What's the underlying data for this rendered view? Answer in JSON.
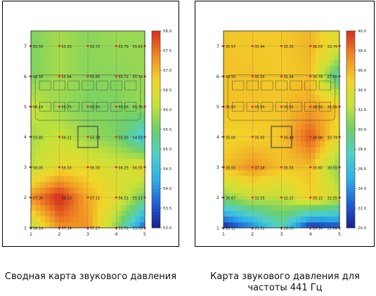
{
  "captions": {
    "left": "Сводная карта звукового давления",
    "right": "Карта звукового давления для частоты 441 Гц"
  },
  "chart_data": [
    {
      "type": "heatmap",
      "title": "Сводная карта звукового давления",
      "x_ticks": [
        "1",
        "2",
        "3",
        "4",
        "5"
      ],
      "y_ticks": [
        "1",
        "2",
        "3",
        "4",
        "5",
        "6",
        "7"
      ],
      "xlim": [
        1,
        5
      ],
      "ylim": [
        1,
        7.5
      ],
      "colorbar_ticks": [
        "53.0",
        "53.5",
        "54.0",
        "54.5",
        "55.0",
        "55.5",
        "56.0",
        "56.5",
        "57.0",
        "57.5",
        "58.0"
      ],
      "colorbar_range": [
        53.0,
        58.0
      ],
      "colors": [
        "#1b1e8c",
        "#1f5fd6",
        "#2fb0e8",
        "#4fd0c8",
        "#6ecf6a",
        "#c6e23a",
        "#f2d52a",
        "#f08a24",
        "#d8301e"
      ],
      "point_labels": [
        {
          "x": 1,
          "y": 7,
          "label": "55.55"
        },
        {
          "x": 2,
          "y": 7,
          "label": "55.93"
        },
        {
          "x": 3,
          "y": 7,
          "label": "55.72"
        },
        {
          "x": 4,
          "y": 7,
          "label": "55.79"
        },
        {
          "x": 5,
          "y": 7,
          "label": "55.81"
        },
        {
          "x": 1,
          "y": 6,
          "label": "55.55"
        },
        {
          "x": 2,
          "y": 6,
          "label": "55.94"
        },
        {
          "x": 3,
          "y": 6,
          "label": "55.65"
        },
        {
          "x": 4,
          "y": 6,
          "label": "55.71"
        },
        {
          "x": 5,
          "y": 6,
          "label": "55.75"
        },
        {
          "x": 1,
          "y": 5,
          "label": "56.15"
        },
        {
          "x": 2,
          "y": 5,
          "label": "55.75"
        },
        {
          "x": 3,
          "y": 5,
          "label": "55.55"
        },
        {
          "x": 4,
          "y": 5,
          "label": "55.55"
        },
        {
          "x": 5,
          "y": 5,
          "label": "55.75"
        },
        {
          "x": 1,
          "y": 4,
          "label": "55.85"
        },
        {
          "x": 2,
          "y": 4,
          "label": "56.21"
        },
        {
          "x": 3,
          "y": 4,
          "label": "55.78"
        },
        {
          "x": 4,
          "y": 4,
          "label": "55.55"
        },
        {
          "x": 5,
          "y": 4,
          "label": "54.55"
        },
        {
          "x": 1,
          "y": 3,
          "label": "56.05"
        },
        {
          "x": 2,
          "y": 3,
          "label": "56.55"
        },
        {
          "x": 3,
          "y": 3,
          "label": "56.55"
        },
        {
          "x": 4,
          "y": 3,
          "label": "56.25"
        },
        {
          "x": 5,
          "y": 3,
          "label": "56.55"
        },
        {
          "x": 1,
          "y": 2,
          "label": "57.30"
        },
        {
          "x": 2,
          "y": 2,
          "label": "58.13"
        },
        {
          "x": 3,
          "y": 2,
          "label": "57.11"
        },
        {
          "x": 4,
          "y": 2,
          "label": "56.51"
        },
        {
          "x": 5,
          "y": 2,
          "label": "55.51"
        },
        {
          "x": 1,
          "y": 1,
          "label": "56.14"
        },
        {
          "x": 2,
          "y": 1,
          "label": "57.34"
        },
        {
          "x": 3,
          "y": 1,
          "label": "57.27"
        },
        {
          "x": 4,
          "y": 1,
          "label": "55.71"
        },
        {
          "x": 5,
          "y": 1,
          "label": "53.55"
        }
      ],
      "field": [
        [
          56.1,
          57.3,
          57.3,
          55.7,
          53.6
        ],
        [
          57.3,
          58.1,
          57.1,
          56.5,
          55.5
        ],
        [
          56.1,
          56.6,
          56.6,
          56.3,
          56.6
        ],
        [
          55.9,
          56.2,
          55.8,
          55.6,
          54.6
        ],
        [
          56.2,
          55.8,
          55.6,
          55.6,
          55.8
        ],
        [
          55.6,
          55.9,
          55.7,
          55.7,
          55.8
        ],
        [
          55.6,
          55.9,
          55.7,
          55.8,
          55.8
        ]
      ]
    },
    {
      "type": "heatmap",
      "title": "Карта звукового давления для частоты 441 Гц",
      "x_ticks": [
        "1",
        "2",
        "3",
        "4",
        "5"
      ],
      "y_ticks": [
        "1",
        "2",
        "3",
        "4",
        "5",
        "6",
        "7"
      ],
      "xlim": [
        1,
        5
      ],
      "ylim": [
        1,
        7.5
      ],
      "colorbar_ticks": [
        "20.0",
        "22.0",
        "24.0",
        "26.0",
        "28.0",
        "30.0",
        "32.0",
        "34.0",
        "36.0",
        "38.0",
        "40.0"
      ],
      "colorbar_range": [
        20.0,
        40.0
      ],
      "colors": [
        "#1b1e8c",
        "#1f5fd6",
        "#2fb0e8",
        "#4fd0c8",
        "#6ecf6a",
        "#c6e23a",
        "#f2d52a",
        "#f08a24",
        "#d8301e"
      ],
      "point_labels": [
        {
          "x": 1,
          "y": 7,
          "label": "35.57"
        },
        {
          "x": 2,
          "y": 7,
          "label": "35.44"
        },
        {
          "x": 3,
          "y": 7,
          "label": "35.35"
        },
        {
          "x": 4,
          "y": 7,
          "label": "36.03"
        },
        {
          "x": 5,
          "y": 7,
          "label": "33.74"
        },
        {
          "x": 1,
          "y": 6,
          "label": "35.55"
        },
        {
          "x": 2,
          "y": 6,
          "label": "35.55"
        },
        {
          "x": 3,
          "y": 6,
          "label": "35.34"
        },
        {
          "x": 4,
          "y": 6,
          "label": "35.78"
        },
        {
          "x": 5,
          "y": 6,
          "label": "27.55"
        },
        {
          "x": 1,
          "y": 5,
          "label": "35.55"
        },
        {
          "x": 2,
          "y": 5,
          "label": "35.55"
        },
        {
          "x": 3,
          "y": 5,
          "label": "35.55"
        },
        {
          "x": 4,
          "y": 5,
          "label": "36.55"
        },
        {
          "x": 5,
          "y": 5,
          "label": "35.55"
        },
        {
          "x": 1,
          "y": 4,
          "label": "35.00"
        },
        {
          "x": 2,
          "y": 4,
          "label": "35.05"
        },
        {
          "x": 3,
          "y": 4,
          "label": "35.48"
        },
        {
          "x": 4,
          "y": 4,
          "label": "38.88"
        },
        {
          "x": 5,
          "y": 4,
          "label": "33.74"
        },
        {
          "x": 1,
          "y": 3,
          "label": "35.55"
        },
        {
          "x": 2,
          "y": 3,
          "label": "37.18"
        },
        {
          "x": 3,
          "y": 3,
          "label": "35.55"
        },
        {
          "x": 4,
          "y": 3,
          "label": "35.65"
        },
        {
          "x": 5,
          "y": 3,
          "label": "30.55"
        },
        {
          "x": 1,
          "y": 2,
          "label": "30.67"
        },
        {
          "x": 2,
          "y": 2,
          "label": "32.55"
        },
        {
          "x": 3,
          "y": 2,
          "label": "32.15"
        },
        {
          "x": 4,
          "y": 2,
          "label": "35.15"
        },
        {
          "x": 5,
          "y": 2,
          "label": "32.55"
        },
        {
          "x": 1,
          "y": 1,
          "label": "20.11"
        },
        {
          "x": 2,
          "y": 1,
          "label": "23.51"
        },
        {
          "x": 3,
          "y": 1,
          "label": "28.03"
        },
        {
          "x": 4,
          "y": 1,
          "label": "20.16"
        },
        {
          "x": 5,
          "y": 1,
          "label": "21.64"
        }
      ],
      "field": [
        [
          20.1,
          23.5,
          28.0,
          20.2,
          21.6
        ],
        [
          30.7,
          32.6,
          32.2,
          35.2,
          32.6
        ],
        [
          35.6,
          37.2,
          35.6,
          35.7,
          30.6
        ],
        [
          35.0,
          35.1,
          35.5,
          38.9,
          33.7
        ],
        [
          35.6,
          35.6,
          35.6,
          36.6,
          35.6
        ],
        [
          35.6,
          35.6,
          35.3,
          35.8,
          27.6
        ],
        [
          35.6,
          35.4,
          35.4,
          36.0,
          33.7
        ]
      ]
    }
  ]
}
